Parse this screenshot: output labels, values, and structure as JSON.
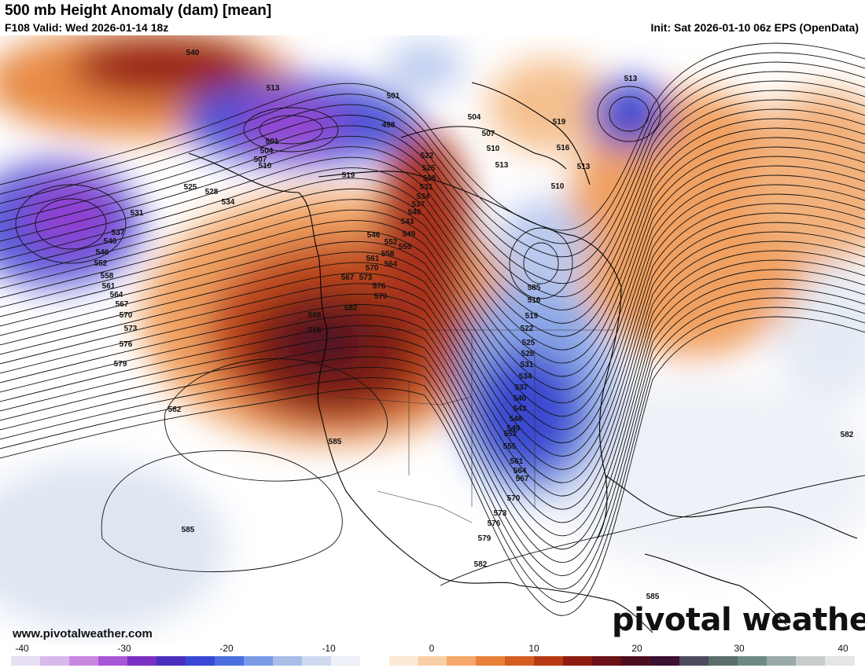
{
  "header": {
    "title": "500 mb Height Anomaly (dam) [mean]",
    "valid": "F108 Valid: Wed 2026-01-14 18z",
    "init": "Init: Sat 2026-01-10 06z EPS (OpenData)"
  },
  "footer": {
    "website": "www.pivotalweather.com",
    "brand": "pivotal weather"
  },
  "colorbar": {
    "ticks": [
      "-40",
      "-30",
      "-20",
      "-10",
      "0",
      "10",
      "20",
      "30",
      "40"
    ],
    "stops": [
      "#e6e0f2",
      "#d9b8ec",
      "#c987e0",
      "#a855d6",
      "#7b2fc4",
      "#4a2fbf",
      "#3a48d6",
      "#4a6ee0",
      "#7a9ae6",
      "#a8bde8",
      "#cfdaf0",
      "#eef2f8",
      "#ffffff",
      "#fbe9d6",
      "#f9cfa5",
      "#f5a869",
      "#e8823a",
      "#d45e22",
      "#b83a12",
      "#8e1c10",
      "#6b1016",
      "#4d0f20",
      "#3b1030",
      "#4d4a5e",
      "#5a6d6a",
      "#6b8a86",
      "#9aa8a8",
      "#c8cccc",
      "#e4e6e6"
    ]
  },
  "contours": {
    "labels": [
      "540",
      "513",
      "501",
      "498",
      "504",
      "507",
      "510",
      "519",
      "516",
      "513",
      "525",
      "528",
      "534",
      "531",
      "537",
      "540",
      "546",
      "552",
      "558",
      "561",
      "564",
      "567",
      "570",
      "573",
      "576",
      "579",
      "582",
      "585",
      "588",
      "522",
      "543",
      "549",
      "555",
      "580"
    ]
  },
  "map_labels": [
    {
      "text": "540"
    },
    {
      "text": "513"
    },
    {
      "text": "501"
    },
    {
      "text": "498"
    },
    {
      "text": "501"
    },
    {
      "text": "504"
    },
    {
      "text": "507"
    },
    {
      "text": "510"
    },
    {
      "text": "519"
    },
    {
      "text": "504"
    },
    {
      "text": "507"
    },
    {
      "text": "510"
    },
    {
      "text": "513"
    },
    {
      "text": "519"
    },
    {
      "text": "516"
    },
    {
      "text": "513"
    },
    {
      "text": "513"
    },
    {
      "text": "510"
    },
    {
      "text": "525"
    },
    {
      "text": "528"
    },
    {
      "text": "534"
    },
    {
      "text": "531"
    },
    {
      "text": "537"
    },
    {
      "text": "540"
    },
    {
      "text": "546"
    },
    {
      "text": "552"
    },
    {
      "text": "558"
    },
    {
      "text": "561"
    },
    {
      "text": "564"
    },
    {
      "text": "567"
    },
    {
      "text": "570"
    },
    {
      "text": "573"
    },
    {
      "text": "576"
    },
    {
      "text": "579"
    },
    {
      "text": "582"
    },
    {
      "text": "585"
    },
    {
      "text": "588"
    },
    {
      "text": "516"
    },
    {
      "text": "522"
    },
    {
      "text": "525"
    },
    {
      "text": "528"
    },
    {
      "text": "531"
    },
    {
      "text": "534"
    },
    {
      "text": "537"
    },
    {
      "text": "540"
    },
    {
      "text": "543"
    },
    {
      "text": "546"
    },
    {
      "text": "549"
    },
    {
      "text": "552"
    },
    {
      "text": "555"
    },
    {
      "text": "558"
    },
    {
      "text": "561"
    },
    {
      "text": "564"
    },
    {
      "text": "570"
    },
    {
      "text": "567"
    },
    {
      "text": "573"
    },
    {
      "text": "576"
    },
    {
      "text": "579"
    },
    {
      "text": "582"
    },
    {
      "text": "585"
    },
    {
      "text": "516"
    },
    {
      "text": "519"
    },
    {
      "text": "522"
    },
    {
      "text": "525"
    },
    {
      "text": "528"
    },
    {
      "text": "531"
    },
    {
      "text": "534"
    },
    {
      "text": "537"
    },
    {
      "text": "540"
    },
    {
      "text": "543"
    },
    {
      "text": "546"
    },
    {
      "text": "549"
    },
    {
      "text": "552"
    },
    {
      "text": "555"
    },
    {
      "text": "561"
    },
    {
      "text": "564"
    },
    {
      "text": "567"
    },
    {
      "text": "570"
    },
    {
      "text": "573"
    },
    {
      "text": "576"
    },
    {
      "text": "579"
    },
    {
      "text": "582"
    },
    {
      "text": "585"
    },
    {
      "text": "582"
    },
    {
      "text": "585"
    },
    {
      "text": "585"
    }
  ]
}
